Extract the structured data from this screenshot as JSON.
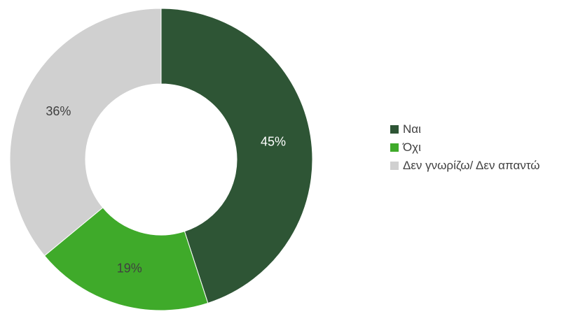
{
  "chart_data": {
    "type": "pie",
    "variant": "donut",
    "title": "",
    "categories": [
      "Ναι",
      "Όχι",
      "Δεν γνωρίζω/ Δεν απαντώ"
    ],
    "values": [
      45,
      19,
      36
    ],
    "labels": [
      "45%",
      "19%",
      "36%"
    ],
    "colors": [
      "#2e5535",
      "#3faa2a",
      "#d0d0d0"
    ],
    "label_colors": [
      "#ffffff",
      "#404040",
      "#404040"
    ],
    "legend_position": "right"
  },
  "legend": {
    "items": [
      {
        "label": "Ναι",
        "color": "#2e5535"
      },
      {
        "label": "Όχι",
        "color": "#3faa2a"
      },
      {
        "label": "Δεν γνωρίζω/ Δεν απαντώ",
        "color": "#d0d0d0"
      }
    ]
  }
}
